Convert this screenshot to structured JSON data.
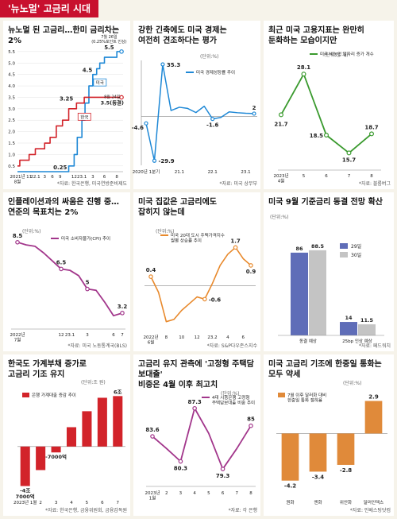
{
  "header": {
    "title": "'뉴노멀' 고금리 시대"
  },
  "colors": {
    "accent": "#c8102e",
    "us": "#1e88d6",
    "kr": "#d2232a",
    "green": "#3a9a2e",
    "purple": "#a2368b",
    "orange": "#e8892c",
    "navy": "#5f6db8",
    "gray": "#c4c4c4",
    "mid": "#e08a3a"
  },
  "chart_data": [
    {
      "id": "rates",
      "type": "line",
      "title": "뉴노멀 된 고금리…한미 금리차는 2%",
      "y_ticks": [
        "0.5",
        "1.0",
        "1.5",
        "2.0",
        "2.5",
        "3.0",
        "3.5",
        "4.0",
        "4.5",
        "5.0",
        "5.5"
      ],
      "x_ticks": [
        "2021년\n8월",
        "11",
        "22.1",
        "3",
        "6",
        "9",
        "12",
        "23.1",
        "3",
        "6",
        "8"
      ],
      "ylim": [
        0.25,
        5.6
      ],
      "series": [
        {
          "name": "미국",
          "points": [
            [
              0,
              0.25
            ],
            [
              6.6,
              0.25
            ],
            [
              6.6,
              0.5
            ],
            [
              7.3,
              0.5
            ],
            [
              7.3,
              1.0
            ],
            [
              7.7,
              1.0
            ],
            [
              7.7,
              1.75
            ],
            [
              8.3,
              1.75
            ],
            [
              8.3,
              2.5
            ],
            [
              8.7,
              2.5
            ],
            [
              8.7,
              3.25
            ],
            [
              9.2,
              3.25
            ],
            [
              9.2,
              4.0
            ],
            [
              9.7,
              4.0
            ],
            [
              9.7,
              4.5
            ],
            [
              10.2,
              4.5
            ],
            [
              10.2,
              4.75
            ],
            [
              10.6,
              4.75
            ],
            [
              10.6,
              5.0
            ],
            [
              11.2,
              5.0
            ],
            [
              11.2,
              5.25
            ],
            [
              12.8,
              5.25
            ],
            [
              12.8,
              5.5
            ],
            [
              13.6,
              5.5
            ]
          ]
        },
        {
          "name": "한국",
          "points": [
            [
              0,
              0.5
            ],
            [
              0.3,
              0.5
            ],
            [
              0.3,
              0.75
            ],
            [
              1.5,
              0.75
            ],
            [
              1.5,
              1.0
            ],
            [
              2.3,
              1.0
            ],
            [
              2.3,
              1.25
            ],
            [
              3.5,
              1.25
            ],
            [
              3.5,
              1.5
            ],
            [
              4.2,
              1.5
            ],
            [
              4.2,
              1.75
            ],
            [
              5.0,
              1.75
            ],
            [
              5.0,
              2.25
            ],
            [
              5.8,
              2.25
            ],
            [
              5.8,
              2.5
            ],
            [
              6.6,
              2.5
            ],
            [
              6.6,
              3.0
            ],
            [
              7.6,
              3.0
            ],
            [
              7.6,
              3.25
            ],
            [
              8.6,
              3.25
            ],
            [
              8.6,
              3.5
            ],
            [
              13.6,
              3.5
            ]
          ]
        }
      ],
      "labels": {
        "us_top": "5.5",
        "us_top_note": "7월 26일\n(0.25%포인트 인상)",
        "us_mid": "4.5",
        "kr_mid": "3.25",
        "kr_end": "3.5(동결)",
        "kr_end_note": "8월 24일",
        "low": "0.25",
        "legend_us": "미국",
        "legend_kr": "한국"
      },
      "source": "*자료: 한국은행, 미국연방준비제도"
    },
    {
      "id": "gdp",
      "type": "line",
      "title": "강한 긴축에도 미국 경제는\n여전히 견조하다는 평가",
      "unit": "(단위:%)",
      "legend": "미국 경제성장률 추이",
      "x_ticks": [
        "2020년 1분기",
        "21.1",
        "22.1",
        "23.1"
      ],
      "values": [
        -4.6,
        -29.9,
        35.3,
        4.1,
        6.3,
        5.5,
        2.7,
        7.0,
        -1.6,
        -0.6,
        3.2,
        2.6,
        2.2,
        2.0
      ],
      "ylim": [
        -33,
        38
      ],
      "point_labels": {
        "0": "-4.6",
        "1": "-29.9",
        "2": "35.3",
        "8": "-1.6",
        "13": "2"
      },
      "source": "*자료: 미국 상무부"
    },
    {
      "id": "jobs",
      "type": "line",
      "title": "최근 미국 고용지표는 완만히\n둔화하는 모습이지만",
      "unit": "(단위:만 개)",
      "legend": "미국 비농업 일자리 증가 개수",
      "x_ticks": [
        "2023년\n4월",
        "5",
        "6",
        "7",
        "8"
      ],
      "values": [
        21.7,
        28.1,
        18.5,
        15.7,
        18.7
      ],
      "ylim": [
        13,
        30
      ],
      "source": "*자료: 블룸버그"
    },
    {
      "id": "cpi",
      "type": "line",
      "title": "인플레이션과의 싸움은 진행 중…\n연준의 목표치는 2%",
      "unit": "(단위:%)",
      "legend": "미국 소비자물가(CPI) 추이",
      "x_ticks": [
        "2022년\n7월",
        "12",
        "23.1",
        "3",
        "6",
        "7"
      ],
      "values": [
        8.5,
        8.3,
        8.2,
        7.7,
        7.1,
        6.5,
        6.4,
        6.0,
        5.0,
        4.9,
        4.0,
        3.0,
        3.2
      ],
      "ylim": [
        2,
        9.5
      ],
      "point_labels": {
        "0": "8.5",
        "5": "6.5",
        "8": "5",
        "12": "3.2"
      },
      "source": "*자료: 미국 노동통계국(BLS)"
    },
    {
      "id": "housing",
      "type": "line",
      "title": "미국 집값은 고금리에도\n잡히지 않는데",
      "unit": "(단위:%)",
      "legend": "미국 20대 도시 주택가격지수\n월별 상승률 추이",
      "x_ticks": [
        "2022년\n6월",
        "8",
        "10",
        "12",
        "23.2",
        "4",
        "6"
      ],
      "values": [
        0.4,
        -0.3,
        -1.6,
        -1.5,
        -1.1,
        -0.8,
        -0.5,
        -0.6,
        0.1,
        0.9,
        1.4,
        1.7,
        1.2,
        0.9
      ],
      "ylim": [
        -2.0,
        2.1
      ],
      "point_labels": {
        "0": "0.4",
        "7": "-0.6",
        "11": "1.7",
        "13": "0.9"
      },
      "source": "*자료: S&P다우존스지수"
    },
    {
      "id": "fed",
      "type": "bar",
      "title": "미국 9월 기준금리 동결 전망 확산",
      "unit": "(단위:%)",
      "categories": [
        "동결 예상",
        "25bp 인상 예상"
      ],
      "series": [
        {
          "name": "29일",
          "values": [
            86,
            14
          ]
        },
        {
          "name": "30일",
          "values": [
            88.5,
            11.5
          ]
        }
      ],
      "ylim": [
        0,
        95
      ],
      "source": "*자료: 페드워치"
    },
    {
      "id": "loans",
      "type": "bar",
      "title": "한국도 가계부채 증가로\n고금리 기조 유지",
      "unit": "(단위:조 원)",
      "legend": "은행 가계대출 증감 추이",
      "categories": [
        "2023년 1월",
        "2",
        "3",
        "4",
        "5",
        "6",
        "7"
      ],
      "values": [
        -4.7,
        -2.8,
        -0.7,
        2.3,
        4.2,
        5.8,
        6.0
      ],
      "ylim": [
        -5.5,
        6.6
      ],
      "point_labels": {
        "0": "-4조\n7000억",
        "2": "-7000억",
        "6": "6조"
      },
      "source": "*자료: 한국은행, 금융위원회, 금융감독원"
    },
    {
      "id": "fixed",
      "type": "line",
      "title": "고금리 유지 관측에 '고정형 주택담보대출'\n비중은 4월 이후 최고치",
      "unit": "(단위:%)",
      "legend": "4대 시중은행 고정형\n주택담보대출 비중 추이",
      "x_ticks": [
        "2023년\n1월",
        "2",
        "3",
        "4",
        "5",
        "6",
        "7",
        "8"
      ],
      "values": [
        83.6,
        82.0,
        80.3,
        87.3,
        84.0,
        79.3,
        82.0,
        85.0
      ],
      "ylim": [
        77,
        90
      ],
      "point_labels": {
        "0": "83.6",
        "2": "80.3",
        "3": "87.3",
        "5": "79.3",
        "7": "85"
      },
      "source": "*자료: 각 은행"
    },
    {
      "id": "fx",
      "type": "bar",
      "title": "미국 고금리 기조에 한중일 통화는\n모두 약세",
      "unit": "(단위:%)",
      "legend": "7월 이후 달러화 대비\n한중일 통화 절하율",
      "categories": [
        "원화",
        "엔화",
        "위안화",
        "달러인덱스"
      ],
      "values": [
        -4.2,
        -3.4,
        -2.8,
        2.9
      ],
      "ylim": [
        -5,
        3.5
      ],
      "source": "*자료: 인베스팅닷컴"
    }
  ]
}
